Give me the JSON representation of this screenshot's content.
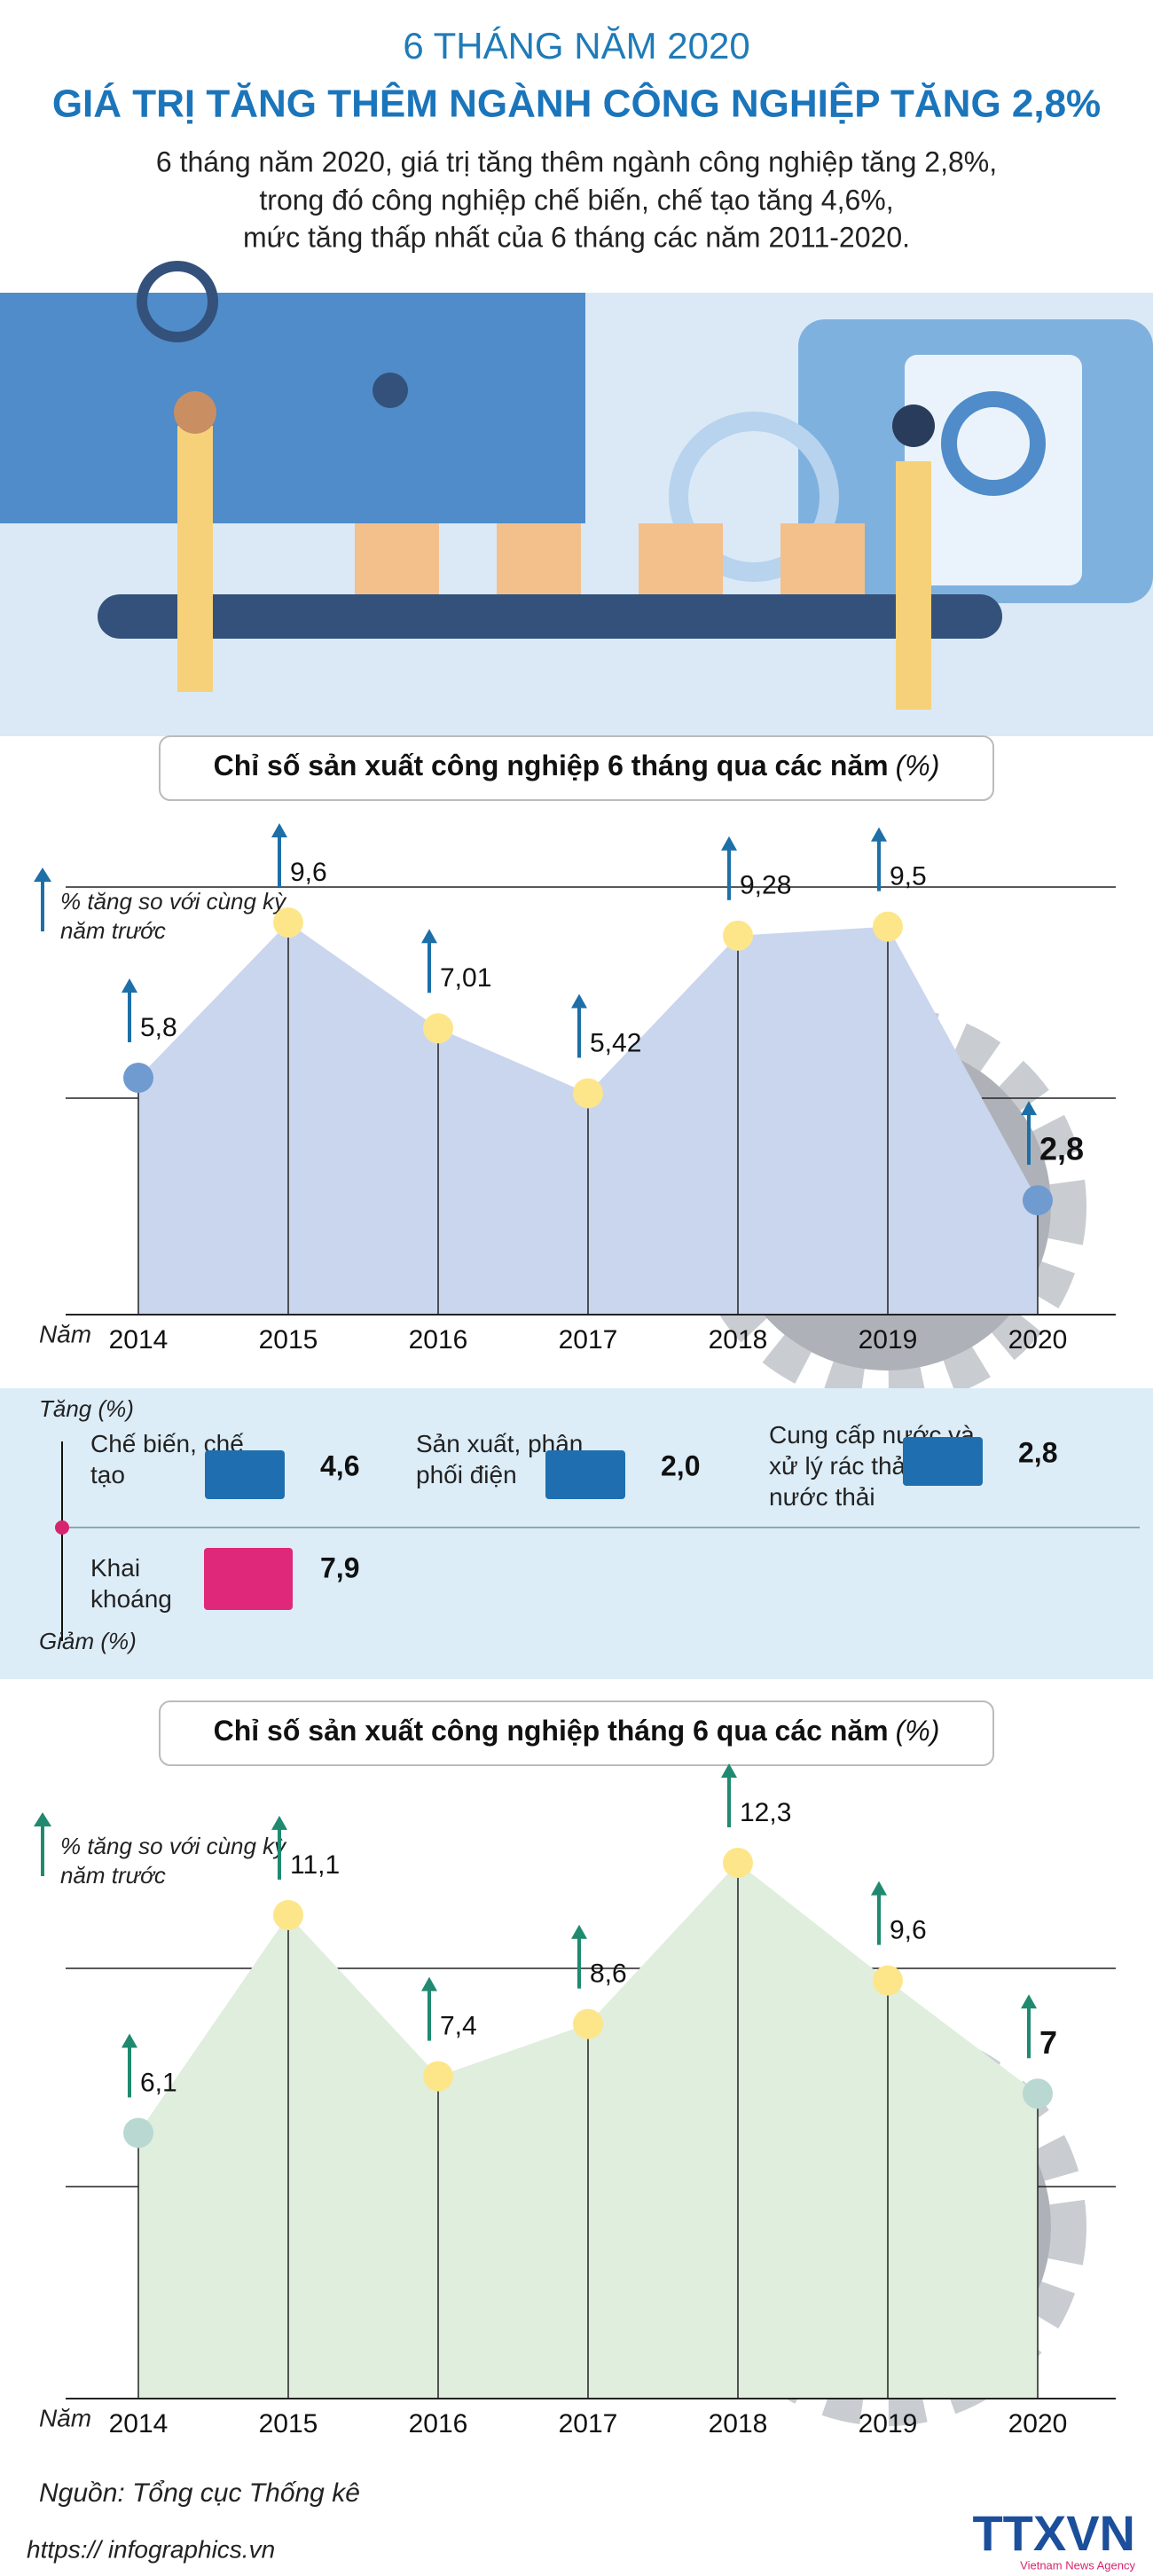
{
  "header": {
    "title_top": "6 THÁNG NĂM 2020",
    "title": "GIÁ TRỊ TĂNG THÊM NGÀNH CÔNG NGHIỆP TĂNG 2,8%",
    "description": [
      "6 tháng  năm 2020, giá trị tăng thêm ngành công nghiệp tăng 2,8%,",
      "trong đó công nghiệp chế biến, chế tạo tăng 4,6%,",
      "mức tăng thấp nhất của 6 tháng các năm 2011-2020."
    ]
  },
  "chart_data": [
    {
      "type": "area",
      "title": "Chỉ số sản xuất công nghiệp 6 tháng qua các năm",
      "title_unit": "(%)",
      "y_label": "% tăng so với cùng kỳ năm trước",
      "x_label": "Năm",
      "categories": [
        "2014",
        "2015",
        "2016",
        "2017",
        "2018",
        "2019",
        "2020"
      ],
      "values": [
        5.8,
        9.6,
        7.01,
        5.42,
        9.28,
        9.5,
        2.8
      ],
      "value_labels": [
        "5,8",
        "9,6",
        "7,01",
        "5,42",
        "9,28",
        "9,5",
        "2,8"
      ],
      "color": "#c9d6ee",
      "point_color": "#fde68a",
      "end_point_color": "#6f9bd1",
      "arrow_color": "#1d6fa8"
    },
    {
      "type": "area",
      "title": "Chỉ số sản xuất công nghiệp tháng 6 qua các năm",
      "title_unit": "(%)",
      "y_label": "% tăng so với cùng kỳ năm trước",
      "x_label": "Năm",
      "categories": [
        "2014",
        "2015",
        "2016",
        "2017",
        "2018",
        "2019",
        "2020"
      ],
      "values": [
        6.1,
        11.1,
        7.4,
        8.6,
        12.3,
        9.6,
        7
      ],
      "value_labels": [
        "6,1",
        "11,1",
        "7,4",
        "8,6",
        "12,3",
        "9,6",
        "7"
      ],
      "color": "#dfeedd",
      "point_color": "#fde68a",
      "end_point_color": "#b9d8d2",
      "arrow_color": "#1f8a70"
    }
  ],
  "sectors": {
    "increase_label": "Tăng (%)",
    "decrease_label": "Giảm (%)",
    "increase": [
      {
        "name": "Chế biến, chế tạo",
        "value": "4,6"
      },
      {
        "name": "Sản xuất, phân phối điện",
        "value": "2,0"
      },
      {
        "name": "Cung cấp nước và xử lý rác thải, nước thải",
        "value": "2,8"
      }
    ],
    "decrease": [
      {
        "name": "Khai khoáng",
        "value": "7,9"
      }
    ]
  },
  "footer": {
    "source": "Nguồn: Tổng cục Thống kê",
    "url": "https:// infographics.vn",
    "logo": "TTXVN",
    "agency": "Vietnam News Agency"
  }
}
